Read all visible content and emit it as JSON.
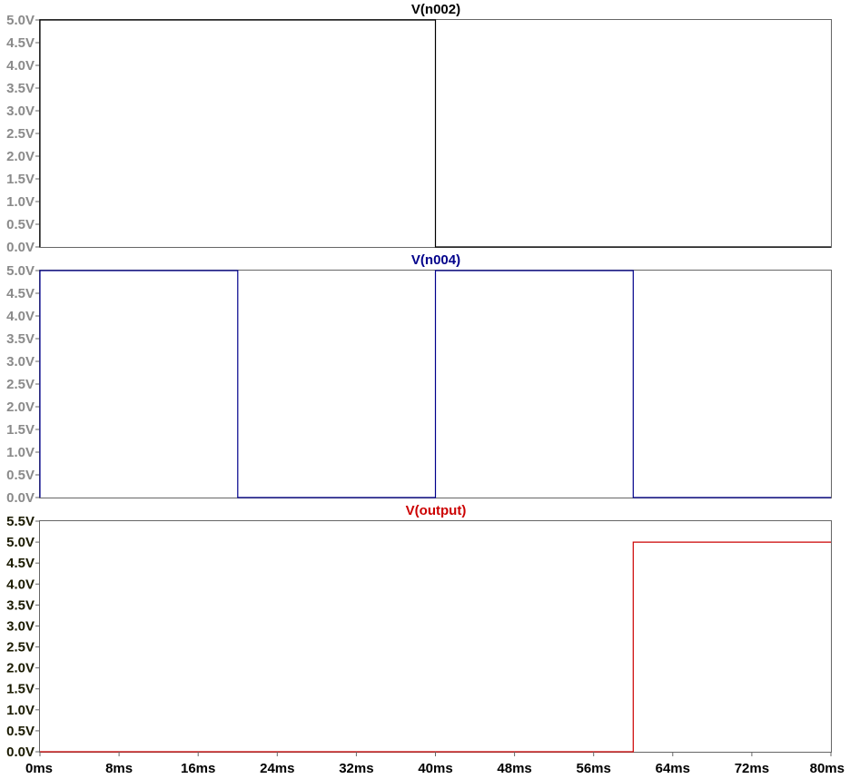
{
  "chart_data": [
    {
      "type": "line",
      "title": "V(n002)",
      "title_color": "#000000",
      "line_color": "#000000",
      "ytick_color": "#8a8a8a",
      "ylim": [
        0,
        5.0
      ],
      "yticks": [
        0,
        0.5,
        1.0,
        1.5,
        2.0,
        2.5,
        3.0,
        3.5,
        4.0,
        4.5,
        5.0
      ],
      "ytick_labels": [
        "0.0V",
        "0.5V",
        "1.0V",
        "1.5V",
        "2.0V",
        "2.5V",
        "3.0V",
        "3.5V",
        "4.0V",
        "4.5V",
        "5.0V"
      ],
      "xlim": [
        0,
        80
      ],
      "x": [
        0,
        0,
        40,
        40,
        80
      ],
      "y": [
        0,
        5,
        5,
        0,
        0
      ]
    },
    {
      "type": "line",
      "title": "V(n004)",
      "title_color": "#00008b",
      "line_color": "#00008b",
      "ytick_color": "#8a8a8a",
      "ylim": [
        0,
        5.0
      ],
      "yticks": [
        0,
        0.5,
        1.0,
        1.5,
        2.0,
        2.5,
        3.0,
        3.5,
        4.0,
        4.5,
        5.0
      ],
      "ytick_labels": [
        "0.0V",
        "0.5V",
        "1.0V",
        "1.5V",
        "2.0V",
        "2.5V",
        "3.0V",
        "3.5V",
        "4.0V",
        "4.5V",
        "5.0V"
      ],
      "xlim": [
        0,
        80
      ],
      "x": [
        0,
        0,
        20,
        20,
        40,
        40,
        60,
        60,
        80
      ],
      "y": [
        0,
        5,
        5,
        0,
        0,
        5,
        5,
        0,
        0
      ]
    },
    {
      "type": "line",
      "title": "V(output)",
      "title_color": "#cc0000",
      "line_color": "#cc0000",
      "ytick_color": "#1a1a00",
      "ylim": [
        0,
        5.5
      ],
      "yticks": [
        0,
        0.5,
        1.0,
        1.5,
        2.0,
        2.5,
        3.0,
        3.5,
        4.0,
        4.5,
        5.0,
        5.5
      ],
      "ytick_labels": [
        "0.0V",
        "0.5V",
        "1.0V",
        "1.5V",
        "2.0V",
        "2.5V",
        "3.0V",
        "3.5V",
        "4.0V",
        "4.5V",
        "5.0V",
        "5.5V"
      ],
      "xlim": [
        0,
        80
      ],
      "x": [
        0,
        60,
        60,
        80
      ],
      "y": [
        0,
        0,
        5,
        5
      ]
    }
  ],
  "x_axis": {
    "ticks": [
      0,
      8,
      16,
      24,
      32,
      40,
      48,
      56,
      64,
      72,
      80
    ],
    "tick_labels": [
      "0ms",
      "8ms",
      "16ms",
      "24ms",
      "32ms",
      "40ms",
      "48ms",
      "56ms",
      "64ms",
      "72ms",
      "80ms"
    ],
    "grid": false
  }
}
